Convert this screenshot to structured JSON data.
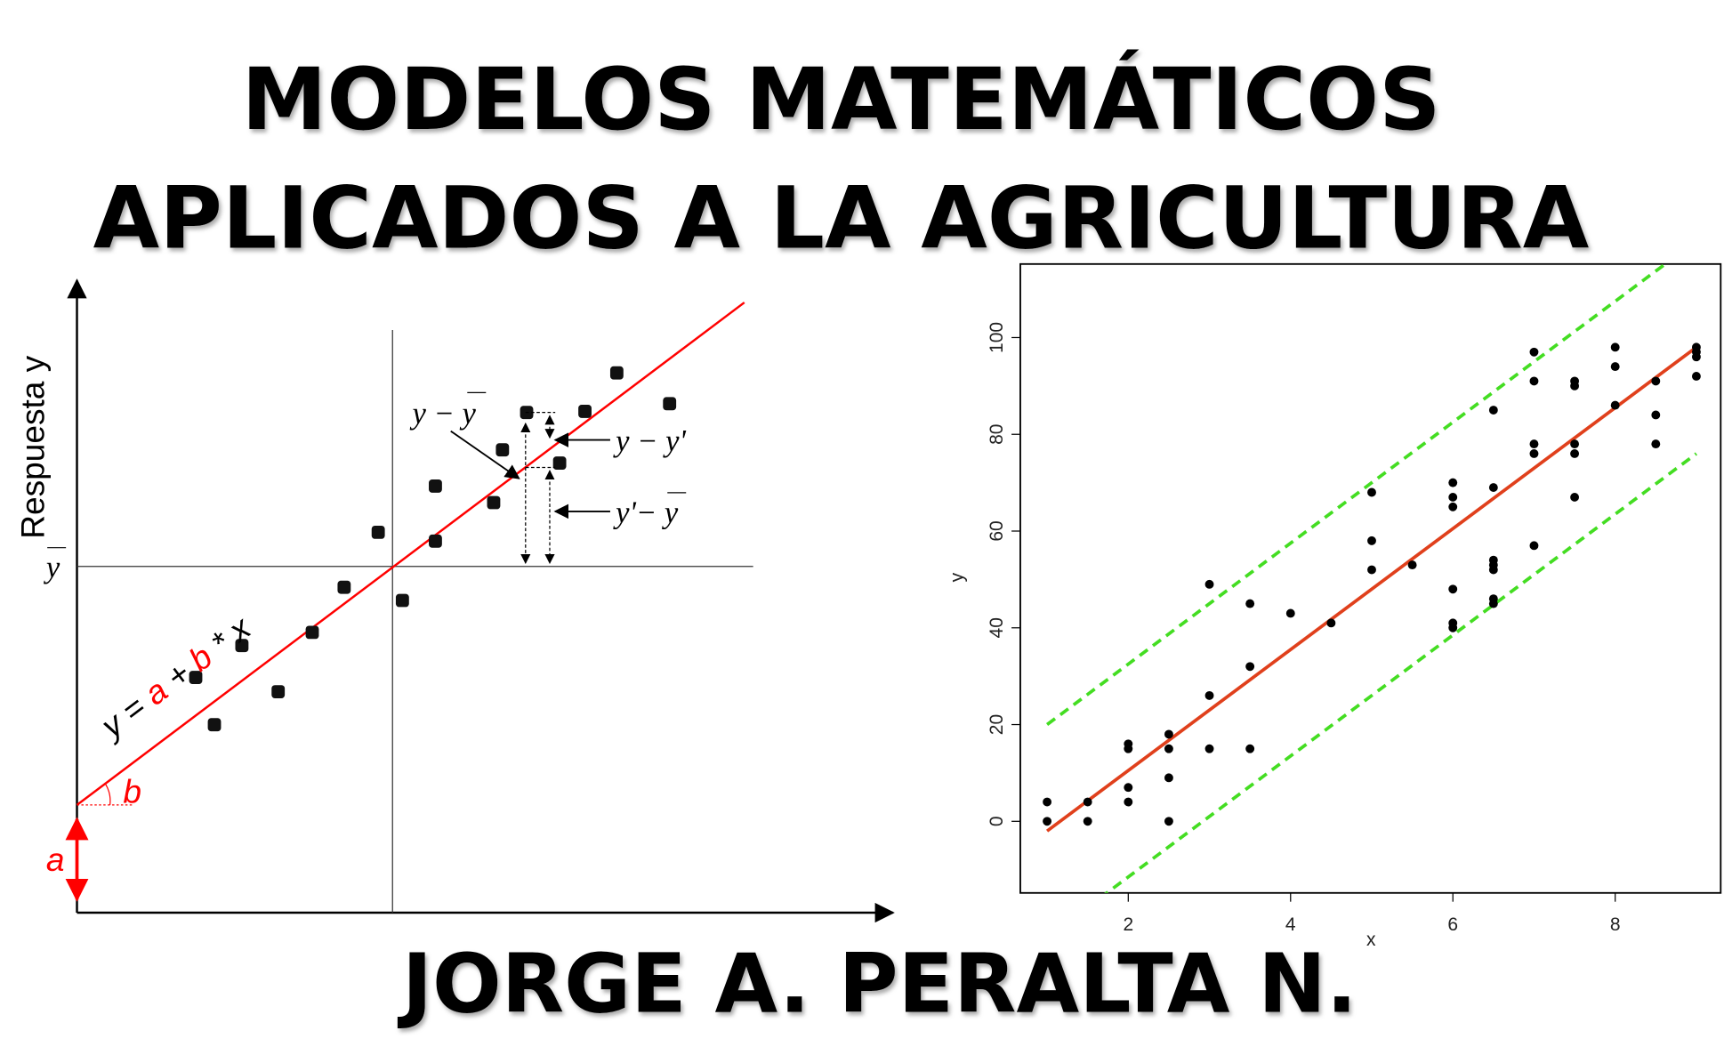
{
  "header": {
    "title_lines": [
      "MODELOS MATEMÁTICOS",
      "APLICADOS A LA AGRICULTURA"
    ]
  },
  "author": "JORGE A. PERALTA N.",
  "diagram": {
    "y_axis_label": "Respuesta y",
    "y_mean_label": "y",
    "equation": [
      "y =",
      "a",
      "+",
      "b",
      "*",
      "x"
    ],
    "intercept_label": "a",
    "slope_label": "b",
    "annotations": [
      "y − y",
      "y − y'",
      "y'− y"
    ]
  },
  "chart_data": {
    "type": "scatter",
    "x_label": "x",
    "y_label": "y",
    "xlim": [
      0.67,
      9.3
    ],
    "ylim": [
      -14.8,
      115.2
    ],
    "xticks": [
      2,
      4,
      6,
      8
    ],
    "yticks": [
      0,
      20,
      40,
      60,
      80,
      100
    ],
    "series": [
      {
        "color": "#000000",
        "x": [
          1,
          1,
          1.5,
          1.5,
          2,
          2,
          2,
          2,
          2.5,
          2.5,
          2.5,
          2.5,
          3,
          3,
          3,
          3.5,
          3.5,
          3.5,
          4,
          4.5,
          5,
          5,
          5,
          5.5,
          6,
          6,
          6,
          6,
          6,
          6,
          6.5,
          6.5,
          6.5,
          6.5,
          6.5,
          6.5,
          6.5,
          7,
          7,
          7,
          7,
          7,
          7.5,
          7.5,
          7.5,
          7.5,
          7.5,
          8,
          8,
          8,
          8.5,
          8.5,
          8.5,
          9,
          9,
          9,
          9
        ],
        "values": [
          4,
          0,
          4,
          0,
          16,
          15,
          7,
          4,
          18,
          15,
          9,
          0,
          49,
          26,
          15,
          45,
          32,
          15,
          43,
          41,
          68,
          58,
          52,
          53,
          70,
          67,
          65,
          48,
          41,
          40,
          85,
          69,
          54,
          53,
          52,
          46,
          45,
          97,
          91,
          78,
          76,
          57,
          91,
          90,
          78,
          76,
          67,
          98,
          94,
          86,
          91,
          84,
          78,
          98,
          97,
          96,
          92
        ]
      }
    ],
    "lines": [
      {
        "color": "#e0401c",
        "x": [
          1,
          9
        ],
        "values": [
          -2,
          98
        ]
      },
      {
        "color": "#44dd22",
        "x": [
          1,
          9
        ],
        "values": [
          20,
          120
        ]
      },
      {
        "color": "#44dd22",
        "x": [
          1,
          9
        ],
        "values": [
          -24,
          76
        ]
      }
    ]
  }
}
